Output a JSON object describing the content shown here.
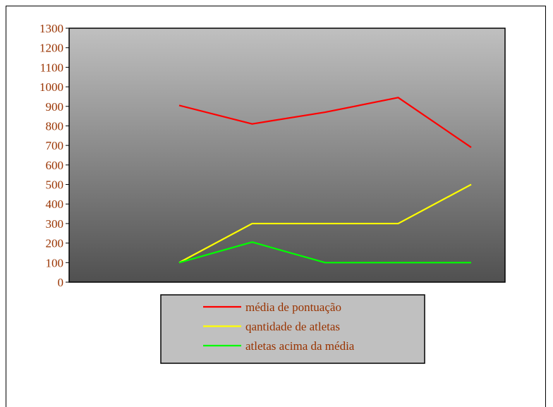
{
  "chart_data": {
    "type": "line",
    "x": [
      1,
      2,
      3,
      4,
      5
    ],
    "ylim": [
      0,
      1300
    ],
    "yticks": [
      "0",
      "100",
      "200",
      "300",
      "400",
      "500",
      "600",
      "700",
      "800",
      "900",
      "1000",
      "1100",
      "1200",
      "1300"
    ],
    "series": [
      {
        "name": "média de pontuação",
        "color": "#ff0000",
        "values": [
          905,
          810,
          870,
          945,
          690
        ]
      },
      {
        "name": "qantidade de atletas",
        "color": "#ffff00",
        "values": [
          100,
          300,
          300,
          300,
          500
        ]
      },
      {
        "name": "atletas acima da média",
        "color": "#00ff00",
        "values": [
          100,
          205,
          100,
          100,
          100
        ]
      }
    ],
    "legend_position": "bottom",
    "tick_color": "#993300",
    "plot_gradient": [
      "#c0c0c0",
      "#505050"
    ]
  }
}
